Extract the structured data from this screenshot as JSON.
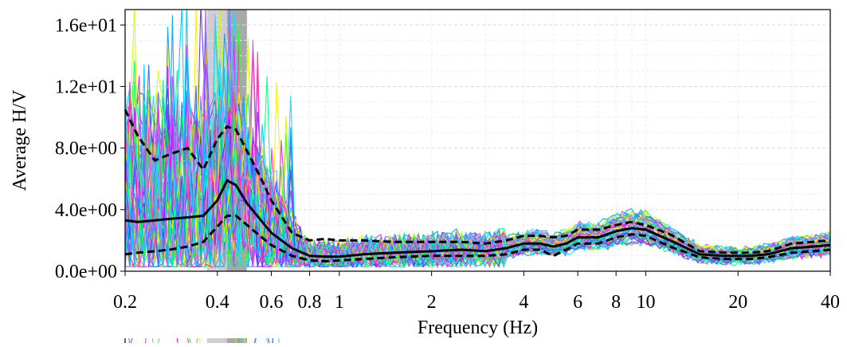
{
  "chart_data": {
    "type": "line",
    "xlabel": "Frequency (Hz)",
    "ylabel": "Average H/V",
    "x_scale": "log",
    "xlim": [
      0.2,
      40
    ],
    "ylim": [
      0,
      17
    ],
    "grid": true,
    "x_ticks": [
      {
        "value": 0.2,
        "label": "0.2"
      },
      {
        "value": 0.4,
        "label": "0.4"
      },
      {
        "value": 0.6,
        "label": "0.6"
      },
      {
        "value": 0.8,
        "label": "0.8"
      },
      {
        "value": 1,
        "label": "1"
      },
      {
        "value": 2,
        "label": "2"
      },
      {
        "value": 4,
        "label": "4"
      },
      {
        "value": 6,
        "label": "6"
      },
      {
        "value": 8,
        "label": "8"
      },
      {
        "value": 10,
        "label": "10"
      },
      {
        "value": 20,
        "label": "20"
      },
      {
        "value": 40,
        "label": "40"
      }
    ],
    "y_ticks": [
      {
        "value": 0,
        "label": "0.0e+00"
      },
      {
        "value": 4,
        "label": "4.0e+00"
      },
      {
        "value": 8,
        "label": "8.0e+00"
      },
      {
        "value": 12,
        "label": "1.2e+01"
      },
      {
        "value": 16,
        "label": "1.6e+01"
      }
    ],
    "peak_band": {
      "f_min": 0.37,
      "f_max": 0.5,
      "f_peak_min": 0.43,
      "f_peak_max": 0.5,
      "band_color": "#d0ccd4",
      "peak_color": "#a8a8a8"
    },
    "series": [
      {
        "role": "mean",
        "style": "solid",
        "color": "#000000",
        "x": [
          0.2,
          0.22,
          0.25,
          0.28,
          0.32,
          0.36,
          0.4,
          0.43,
          0.46,
          0.5,
          0.55,
          0.6,
          0.7,
          0.8,
          0.9,
          1.0,
          1.2,
          1.5,
          2.0,
          2.5,
          3.0,
          3.5,
          4.0,
          4.5,
          5.0,
          5.5,
          6.0,
          7.0,
          8.0,
          9.0,
          10.0,
          12.0,
          15.0,
          18.0,
          22.0,
          25.0,
          30.0,
          35.0,
          40.0
        ],
        "y": [
          3.3,
          3.2,
          3.3,
          3.4,
          3.5,
          3.6,
          4.6,
          5.9,
          5.6,
          4.4,
          3.4,
          2.5,
          1.5,
          1.0,
          0.95,
          0.95,
          1.1,
          1.2,
          1.3,
          1.4,
          1.3,
          1.5,
          1.8,
          1.8,
          1.6,
          1.8,
          2.2,
          2.2,
          2.6,
          2.8,
          2.7,
          2.0,
          1.1,
          1.0,
          1.0,
          1.1,
          1.5,
          1.6,
          1.7
        ]
      },
      {
        "role": "mean+std",
        "style": "dashed",
        "color": "#000000",
        "x": [
          0.2,
          0.22,
          0.25,
          0.28,
          0.32,
          0.36,
          0.4,
          0.43,
          0.46,
          0.5,
          0.55,
          0.6,
          0.7,
          0.8,
          0.9,
          1.0,
          1.2,
          1.5,
          2.0,
          2.5,
          3.0,
          3.5,
          4.0,
          4.5,
          5.0,
          5.5,
          6.0,
          7.0,
          8.0,
          9.0,
          10.0,
          12.0,
          15.0,
          18.0,
          22.0,
          25.0,
          30.0,
          35.0,
          40.0
        ],
        "y": [
          10.5,
          8.8,
          7.2,
          7.6,
          8.0,
          6.6,
          8.6,
          9.4,
          9.2,
          7.8,
          6.2,
          4.6,
          2.5,
          2.0,
          2.1,
          2.0,
          2.0,
          1.9,
          1.9,
          1.9,
          1.8,
          2.0,
          2.3,
          2.3,
          2.2,
          2.3,
          2.7,
          2.7,
          3.0,
          3.2,
          3.0,
          2.4,
          1.3,
          1.2,
          1.2,
          1.3,
          1.8,
          1.9,
          2.0
        ]
      },
      {
        "role": "mean-std",
        "style": "dashed",
        "color": "#000000",
        "x": [
          0.2,
          0.22,
          0.25,
          0.28,
          0.32,
          0.36,
          0.4,
          0.43,
          0.46,
          0.5,
          0.55,
          0.6,
          0.7,
          0.8,
          0.9,
          1.0,
          1.2,
          1.5,
          2.0,
          2.5,
          3.0,
          3.5,
          4.0,
          4.5,
          5.0,
          5.5,
          6.0,
          7.0,
          8.0,
          9.0,
          10.0,
          12.0,
          15.0,
          18.0,
          22.0,
          25.0,
          30.0,
          35.0,
          40.0
        ],
        "y": [
          1.1,
          1.2,
          1.3,
          1.4,
          1.6,
          1.9,
          2.9,
          3.6,
          3.6,
          3.0,
          2.3,
          1.7,
          1.0,
          0.7,
          0.65,
          0.7,
          0.8,
          0.9,
          1.0,
          1.0,
          1.0,
          1.1,
          1.4,
          1.4,
          1.0,
          1.4,
          1.8,
          1.8,
          2.2,
          2.4,
          2.3,
          1.6,
          0.9,
          0.8,
          0.8,
          0.9,
          1.2,
          1.3,
          1.4
        ]
      }
    ]
  },
  "window_curves": {
    "count": 60,
    "colors": [
      "#ff00ff",
      "#cc33ff",
      "#3366ff",
      "#00ccff",
      "#00ffcc",
      "#33ff33",
      "#ccff00",
      "#ffee00",
      "#ff66cc",
      "#6633ff",
      "#00aaff",
      "#00ff88",
      "#9966ff",
      "#ff33aa",
      "#33ccff"
    ]
  }
}
